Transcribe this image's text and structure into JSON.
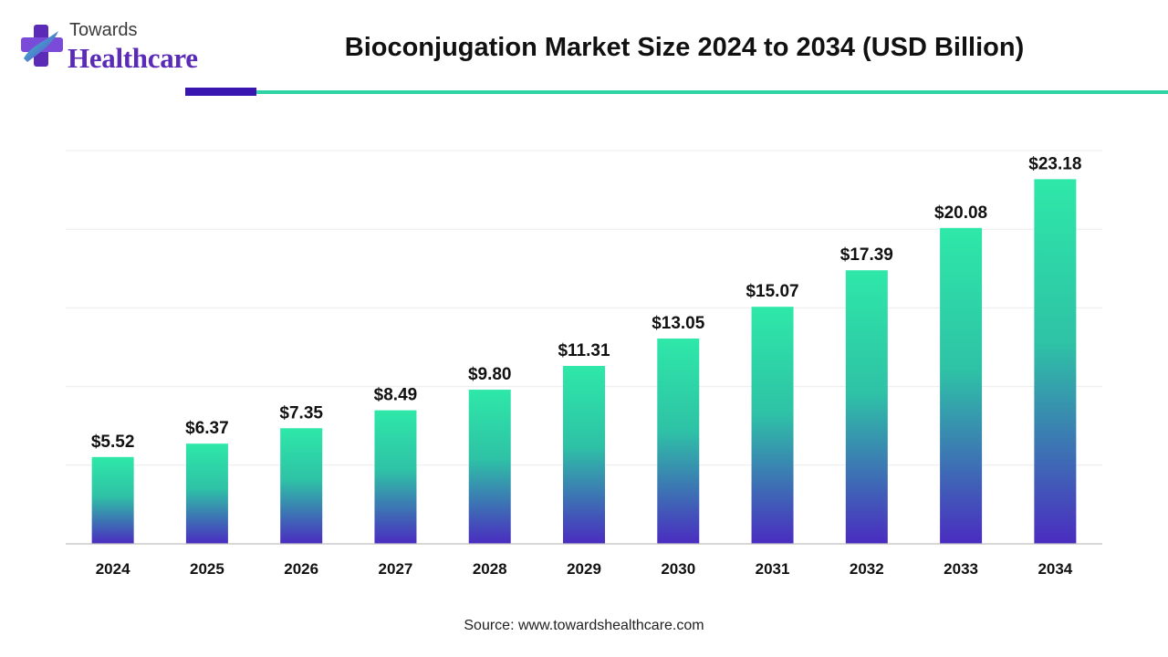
{
  "logo": {
    "line1": "Towards",
    "line2": "Healthcare"
  },
  "title": "Bioconjugation Market Size 2024 to 2034 (USD Billion)",
  "source": "Source: www.towardshealthcare.com",
  "colors": {
    "bar_top": "#2ee8a8",
    "bar_bottom": "#4a2cc0",
    "accent_dark": "#3a16b0",
    "accent_teal": "#2ed3a6",
    "logo_purple": "#5b2bb8"
  },
  "chart_data": {
    "type": "bar",
    "title": "Bioconjugation Market Size 2024 to 2034 (USD Billion)",
    "categories": [
      "2024",
      "2025",
      "2026",
      "2027",
      "2028",
      "2029",
      "2030",
      "2031",
      "2032",
      "2033",
      "2034"
    ],
    "values": [
      5.52,
      6.37,
      7.35,
      8.49,
      9.8,
      11.31,
      13.05,
      15.07,
      17.39,
      20.08,
      23.18
    ],
    "value_labels": [
      "$5.52",
      "$6.37",
      "$7.35",
      "$8.49",
      "$9.80",
      "$11.31",
      "$13.05",
      "$15.07",
      "$17.39",
      "$20.08",
      "$23.18"
    ],
    "xlabel": "",
    "ylabel": "",
    "ylim": [
      0,
      25
    ],
    "grid": true,
    "legend": "none"
  }
}
